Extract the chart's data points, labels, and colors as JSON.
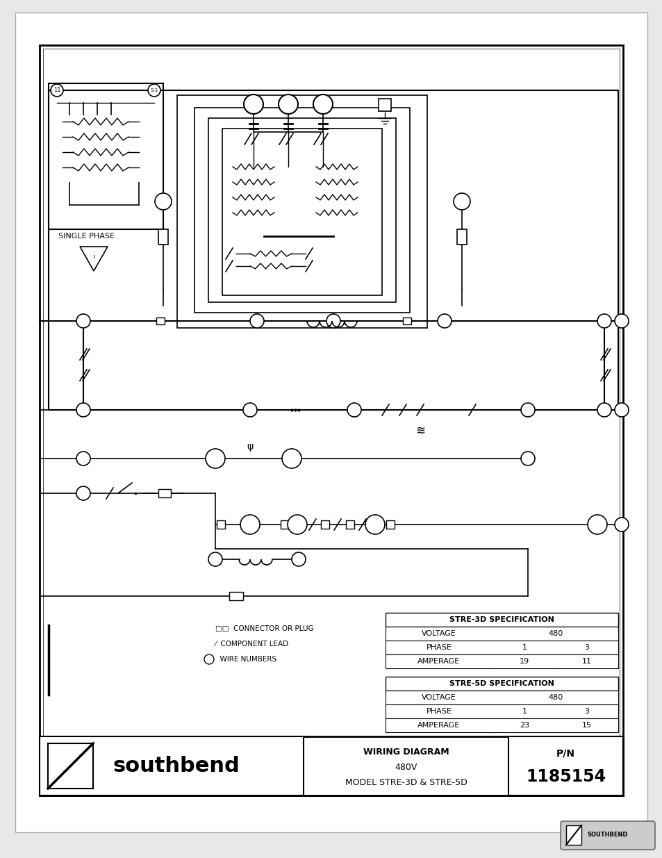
{
  "bg_color": "#e8e8e8",
  "page_bg": "#ffffff",
  "spec_3d": {
    "header": "STRE-3D SPECIFICATION",
    "rows": [
      [
        "VOLTAGE",
        "480",
        ""
      ],
      [
        "PHASE",
        "1",
        "3"
      ],
      [
        "AMPERAGE",
        "19",
        "11"
      ]
    ]
  },
  "spec_5d": {
    "header": "STRE-5D SPECIFICATION",
    "rows": [
      [
        "VOLTAGE",
        "480",
        ""
      ],
      [
        "PHASE",
        "1",
        "3"
      ],
      [
        "AMPERAGE",
        "23",
        "15"
      ]
    ]
  },
  "title_line1": "WIRING DIAGRAM",
  "title_line2": "480V",
  "title_line3": "MODEL STRE-3D & STRE-5D",
  "pn_label": "P/N",
  "pn_number": "1185154"
}
